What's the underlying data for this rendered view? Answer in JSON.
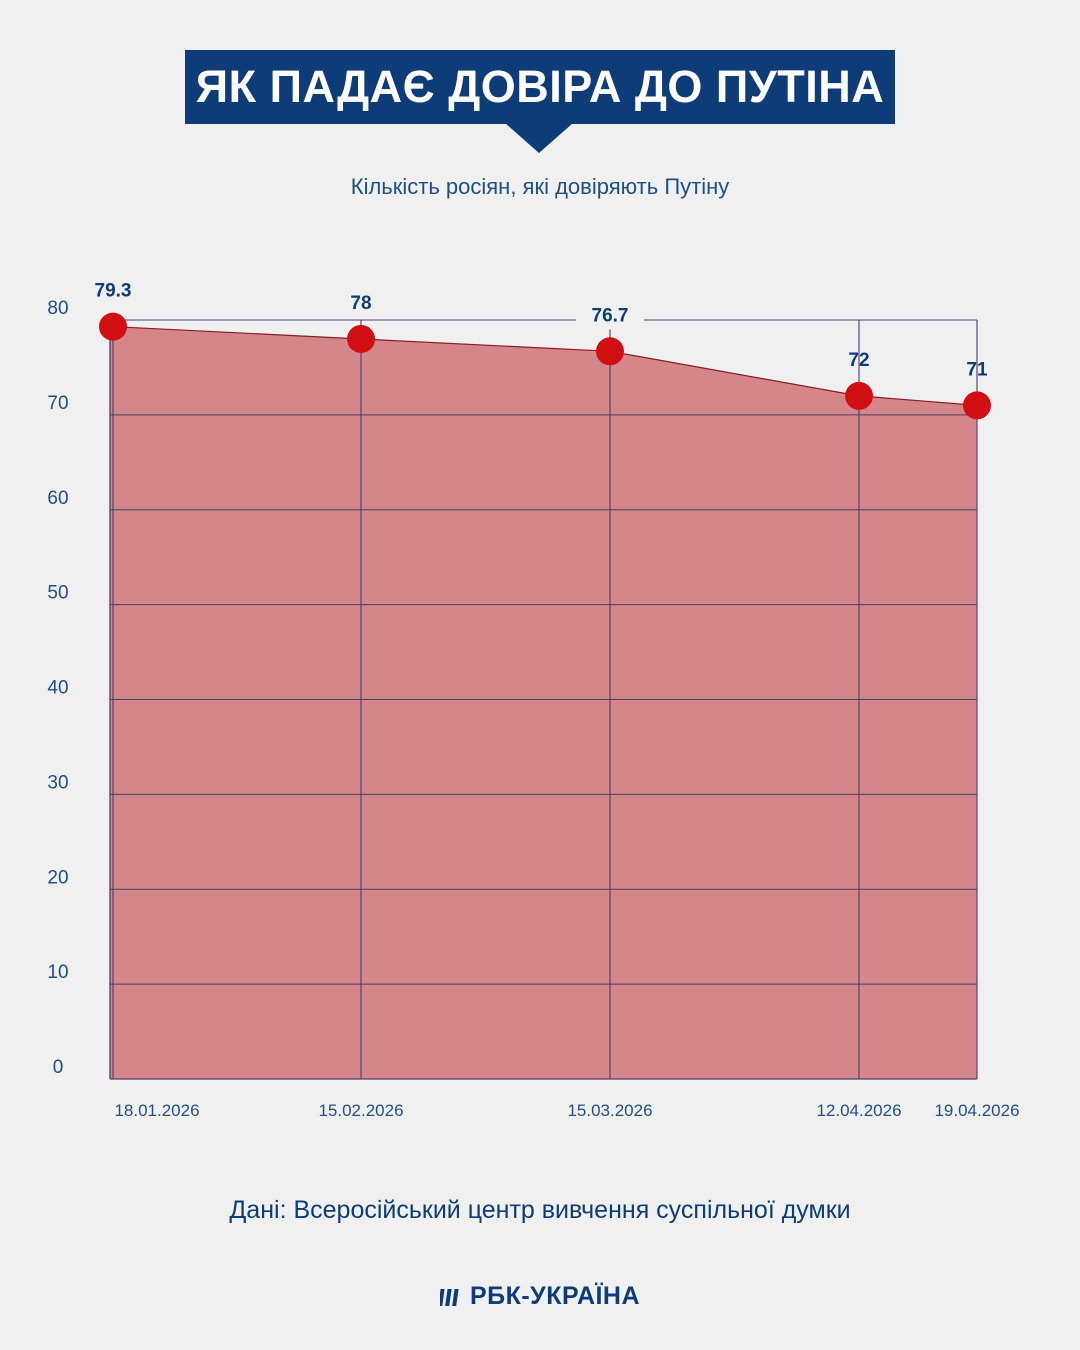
{
  "header": {
    "title": "ЯК ПАДАЄ ДОВІРА ДО ПУТІНА",
    "subtitle": "Кількість росіян, які довіряють Путіну"
  },
  "footer": {
    "source": "Дані: Всеросійський центр вивчення суспільної думки",
    "logo": "РБК-УКРАЇНА"
  },
  "colors": {
    "brand": "#0d3c78",
    "area_fill": "#d4868a",
    "point": "#d10e12",
    "grid": "#4a3f66"
  },
  "chart_data": {
    "type": "area",
    "x": [
      "18.01.2026",
      "15.02.2026",
      "15.03.2026",
      "12.04.2026",
      "19.04.2026"
    ],
    "values": [
      79.3,
      78,
      76.7,
      72,
      71
    ],
    "data_labels": [
      "79.3",
      "78",
      "76.7",
      "72",
      "71"
    ],
    "ylim": [
      0,
      80
    ],
    "yticks": [
      0,
      10,
      20,
      30,
      40,
      50,
      60,
      70,
      80
    ],
    "grid": true,
    "title": "",
    "xlabel": "",
    "ylabel": ""
  }
}
